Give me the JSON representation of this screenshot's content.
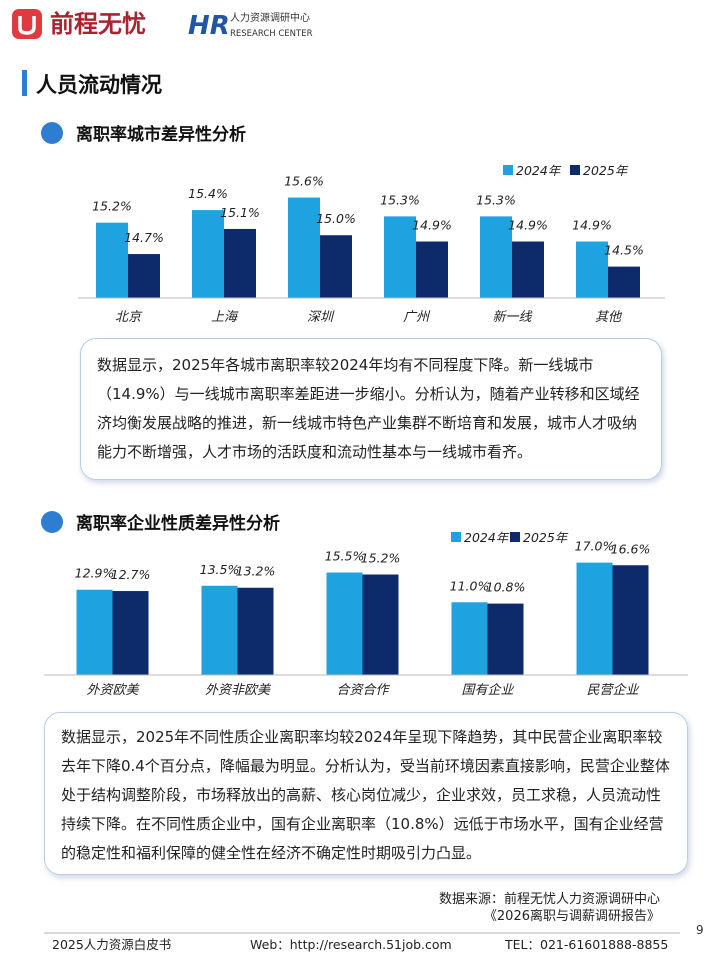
{
  "header": {
    "brand": "前程无忧",
    "hr_logo": "HR",
    "center_name": "人力资源调研中心",
    "center_name_en": "RESEARCH CENTER"
  },
  "section_title": "人员流动情况",
  "subsections": [
    {
      "title": "离职率城市差异性分析",
      "paragraph": "数据显示，2025年各城市离职率较2024年均有不同程度下降。新一线城市（14.9%）与一线城市离职率差距进一步缩小。分析认为，随着产业转移和区域经济均衡发展战略的推进，新一线城市特色产业集群不断培育和发展，城市人才吸纳能力不断增强，人才市场的活跃度和流动性基本与一线城市看齐。"
    },
    {
      "title": "离职率企业性质差异性分析",
      "paragraph": "数据显示，2025年不同性质企业离职率均较2024年呈现下降趋势，其中民营企业离职率较去年下降0.4个百分点，降幅最为明显。分析认为，受当前环境因素直接影响，民营企业整体处于结构调整阶段，市场释放出的高薪、核心岗位减少，企业求效，员工求稳，人员流动性持续下降。在不同性质企业中，国有企业离职率（10.8%）远低于市场水平，国有企业经营的稳定性和福利保障的健全性在经济不确定性时期吸引力凸显。"
    }
  ],
  "chart_data": [
    {
      "type": "bar",
      "categories": [
        "北京",
        "上海",
        "深圳",
        "广州",
        "新一线",
        "其他"
      ],
      "ylim": [
        14,
        15.8
      ],
      "series": [
        {
          "name": "2024年",
          "color": "#1fa3e0",
          "values": [
            15.2,
            15.4,
            15.6,
            15.3,
            15.3,
            14.9
          ],
          "value_labels": [
            "15.2%",
            "15.4%",
            "15.6%",
            "15.3%",
            "15.3%",
            "14.9%"
          ]
        },
        {
          "name": "2025年",
          "color": "#0d2a6b",
          "values": [
            14.7,
            15.1,
            15.0,
            14.9,
            14.9,
            14.5
          ],
          "value_labels": [
            "14.7%",
            "15.1%",
            "15.0%",
            "14.9%",
            "14.9%",
            "14.5%"
          ]
        }
      ]
    },
    {
      "type": "bar",
      "categories": [
        "外资欧美",
        "外资非欧美",
        "合资合作",
        "国有企业",
        "民营企业"
      ],
      "ylim": [
        0,
        18
      ],
      "series": [
        {
          "name": "2024年",
          "color": "#1fa3e0",
          "values": [
            12.9,
            13.5,
            15.5,
            11.0,
            17.0
          ],
          "value_labels": [
            "12.9%",
            "13.5%",
            "15.5%",
            "11.0%",
            "17.0%"
          ]
        },
        {
          "name": "2025年",
          "color": "#0d2a6b",
          "values": [
            12.7,
            13.2,
            15.2,
            10.8,
            16.6
          ],
          "value_labels": [
            "12.7%",
            "13.2%",
            "15.2%",
            "10.8%",
            "16.6%"
          ]
        }
      ]
    }
  ],
  "source": {
    "line1": "数据来源：前程无忧人力资源调研中心",
    "line2": "《2026离职与调薪调研报告》"
  },
  "page_number": 9,
  "footer": {
    "title": "2025人力资源白皮书",
    "web": "Web：http://research.51job.com",
    "tel": "TEL：021-61601888-8855"
  }
}
